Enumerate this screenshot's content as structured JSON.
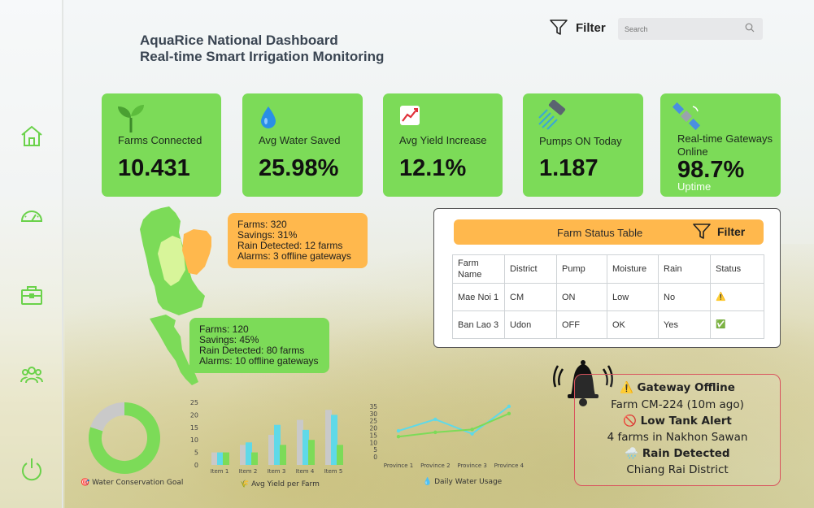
{
  "header": {
    "title_line1": "AquaRice National Dashboard",
    "title_line2": "Real-time Smart Irrigation Monitoring",
    "filter_label": "Filter",
    "search_placeholder": "Search"
  },
  "sidebar": {
    "items": [
      {
        "icon": "home-icon"
      },
      {
        "icon": "gauge-icon"
      },
      {
        "icon": "briefcase-icon"
      },
      {
        "icon": "users-icon"
      },
      {
        "icon": "power-icon"
      }
    ]
  },
  "kpis": [
    {
      "label": "Farms Connected",
      "value": "10.431",
      "icon": "sprout-icon"
    },
    {
      "label": "Avg Water Saved",
      "value": "25.98%",
      "icon": "water-drop-icon"
    },
    {
      "label": "Avg Yield Increase",
      "value": "12.1%",
      "icon": "chart-increasing-icon"
    },
    {
      "label": "Pumps ON Today",
      "value": "1.187",
      "icon": "shower-icon"
    },
    {
      "label": "Real-time Gateways Online",
      "label_line1": "Real-time Gateways",
      "label_line2": "Online",
      "value": "98.7%",
      "sub": "Uptime",
      "icon": "satellite-icon"
    }
  ],
  "map": {
    "north": {
      "farms": "Farms: 320",
      "savings": "Savings: 31%",
      "rain": "Rain Detected: 12 farms",
      "alarms": "Alarms: 3 offline gateways"
    },
    "south": {
      "farms": "Farms: 120",
      "savings": "Savings: 45%",
      "rain": "Rain Detected: 80 farms",
      "alarms": "Alarms: 10 offline gateways"
    }
  },
  "status_table": {
    "title": "Farm Status Table",
    "filter_label": "Filter",
    "headers": [
      "Farm Name",
      "District",
      "Pump",
      "Moisture",
      "Rain",
      "Status"
    ],
    "rows": [
      [
        "Mae Noi 1",
        "CM",
        "ON",
        "Low",
        "No",
        "⚠️"
      ],
      [
        "Ban Lao 3",
        "Udon",
        "OFF",
        "OK",
        "Yes",
        "✅"
      ]
    ]
  },
  "alerts": {
    "a1_title": "⚠️ Gateway Offline",
    "a1_detail": "Farm CM-224 (10m ago)",
    "a2_title": "🚫 Low Tank Alert",
    "a2_detail": "4 farms in Nakhon Sawan",
    "a3_title": "🌧️ Rain Detected",
    "a3_detail": "Chiang Rai District"
  },
  "colors": {
    "accent_green": "#7cdb58",
    "accent_orange": "#ffb84d",
    "light_green": "#d8f59a",
    "cyan": "#5fd9e8",
    "alert_red": "#d9535d"
  },
  "chart_data": [
    {
      "type": "pie",
      "title": "🎯 Water Conservation Goal",
      "values": [
        80,
        20
      ],
      "colors": [
        "#7cdb58",
        "#c9c9c9"
      ]
    },
    {
      "type": "bar",
      "title": "🌾 Avg Yield per Farm",
      "categories": [
        "Item 1",
        "Item 2",
        "Item 3",
        "Item 4",
        "Item 5"
      ],
      "ylim": [
        0,
        25
      ],
      "yticks": [
        "0",
        "5",
        "10",
        "15",
        "20",
        "25"
      ],
      "series": [
        {
          "values": [
            5,
            8,
            12,
            18,
            22
          ],
          "color": "#c9c9c9"
        },
        {
          "values": [
            5,
            9,
            16,
            14,
            20
          ],
          "color": "#5fd9e8"
        },
        {
          "values": [
            5,
            5,
            8,
            10,
            8
          ],
          "color": "#7cdb58"
        }
      ]
    },
    {
      "type": "line",
      "title": "💧 Daily Water Usage",
      "categories": [
        "Province 1",
        "Province 2",
        "Province 3",
        "Province 4"
      ],
      "ylim": [
        0,
        35
      ],
      "yticks": [
        "0",
        "5",
        "10",
        "15",
        "20",
        "25",
        "30",
        "35"
      ],
      "series": [
        {
          "values": [
            18,
            26,
            16,
            35
          ],
          "color": "#5fd9e8"
        },
        {
          "values": [
            14,
            17,
            19,
            30
          ],
          "color": "#7cdb58"
        }
      ]
    }
  ]
}
